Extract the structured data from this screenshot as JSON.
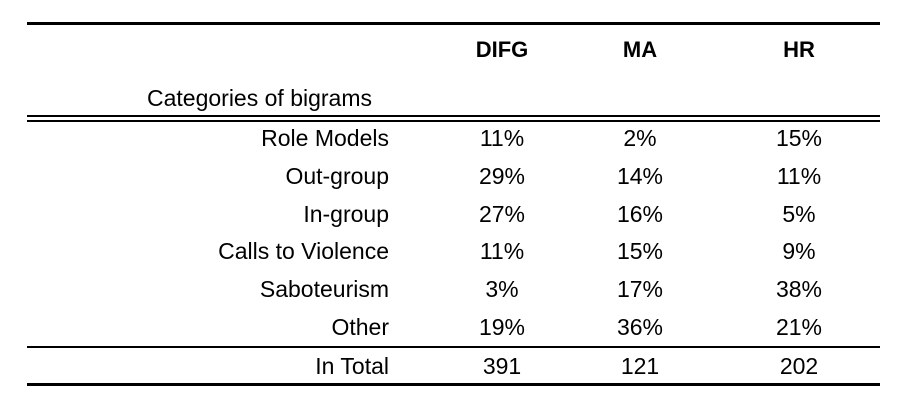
{
  "chart_data": {
    "type": "table",
    "row_header_label": "Categories of bigrams",
    "columns": [
      "DIFG",
      "MA",
      "HR"
    ],
    "rows": [
      {
        "label": "Role Models",
        "values": [
          "11%",
          "2%",
          "15%"
        ]
      },
      {
        "label": "Out-group",
        "values": [
          "29%",
          "14%",
          "11%"
        ]
      },
      {
        "label": "In-group",
        "values": [
          "27%",
          "16%",
          "5%"
        ]
      },
      {
        "label": "Calls to Violence",
        "values": [
          "11%",
          "15%",
          "9%"
        ]
      },
      {
        "label": "Saboteurism",
        "values": [
          "3%",
          "17%",
          "38%"
        ]
      },
      {
        "label": "Other",
        "values": [
          "19%",
          "36%",
          "21%"
        ]
      }
    ],
    "total": {
      "label": "In Total",
      "values": [
        "391",
        "121",
        "202"
      ]
    }
  }
}
